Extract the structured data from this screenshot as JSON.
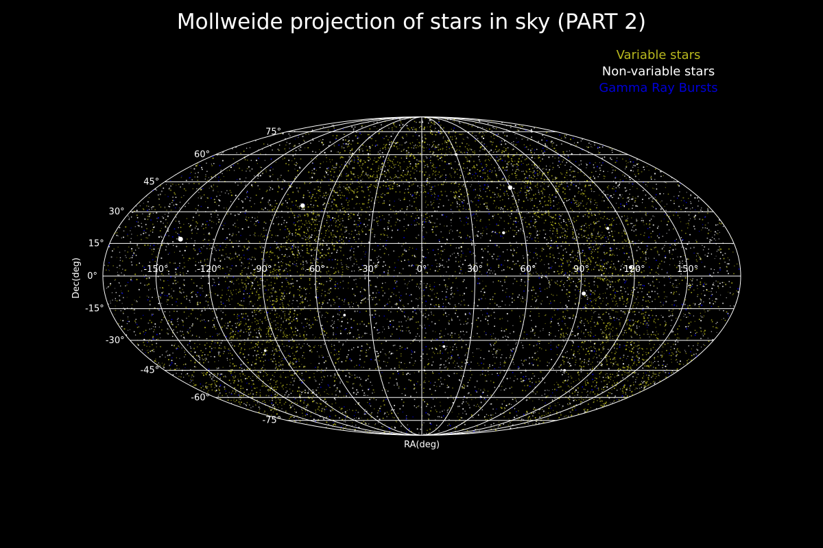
{
  "chart_data": {
    "type": "scatter",
    "projection": "mollweide",
    "title": "Mollweide projection of stars in sky (PART 2)",
    "xlabel": "RA(deg)",
    "ylabel": "Dec(deg)",
    "xlim": [
      -180,
      180
    ],
    "ylim": [
      -90,
      90
    ],
    "grid": true,
    "background": "#000000",
    "legend_position": "top-right",
    "x_ticks": [
      -150,
      -120,
      -90,
      -60,
      -30,
      0,
      30,
      60,
      90,
      120,
      150
    ],
    "x_tick_labels": [
      "-150°",
      "-120°",
      "-90°",
      "-60°",
      "-30°",
      "0°",
      "30°",
      "60°",
      "90°",
      "120°",
      "150°"
    ],
    "y_ticks": [
      75,
      60,
      45,
      30,
      15,
      0,
      -15,
      -30,
      -45,
      -60,
      -75
    ],
    "y_tick_labels": [
      "75°",
      "60°",
      "45°",
      "30°",
      "15°",
      "0°",
      "-15°",
      "-30°",
      "-45°",
      "-60°",
      "-75°"
    ],
    "series": [
      {
        "name": "Variable stars",
        "color": "#b8b81e",
        "approx_count": 12000,
        "distribution": "dense clumps along the galactic plane band"
      },
      {
        "name": "Non-variable stars",
        "color": "#ffffff",
        "approx_count": 10000,
        "distribution": "roughly uniform over the sky",
        "bright_points": [
          {
            "x": -140,
            "y": 17,
            "size": 3.5
          },
          {
            "x": -75,
            "y": 33,
            "size": 3.2
          },
          {
            "x": 60,
            "y": 42,
            "size": 3.2
          },
          {
            "x": 92,
            "y": -8,
            "size": 3.0
          },
          {
            "x": 118,
            "y": 4,
            "size": 2.6
          },
          {
            "x": 110,
            "y": 22,
            "size": 2.2
          },
          {
            "x": 48,
            "y": 20,
            "size": 2.2
          },
          {
            "x": 14,
            "y": -33,
            "size": 1.9
          },
          {
            "x": -45,
            "y": -18,
            "size": 1.9
          },
          {
            "x": 100,
            "y": -45,
            "size": 1.9
          },
          {
            "x": -100,
            "y": -35,
            "size": 1.9
          },
          {
            "x": 30,
            "y": 60,
            "size": 1.9
          }
        ]
      },
      {
        "name": "Gamma Ray Bursts",
        "color": "#0000d6",
        "approx_count": 2000,
        "distribution": "sparse, roughly uniform"
      }
    ]
  }
}
